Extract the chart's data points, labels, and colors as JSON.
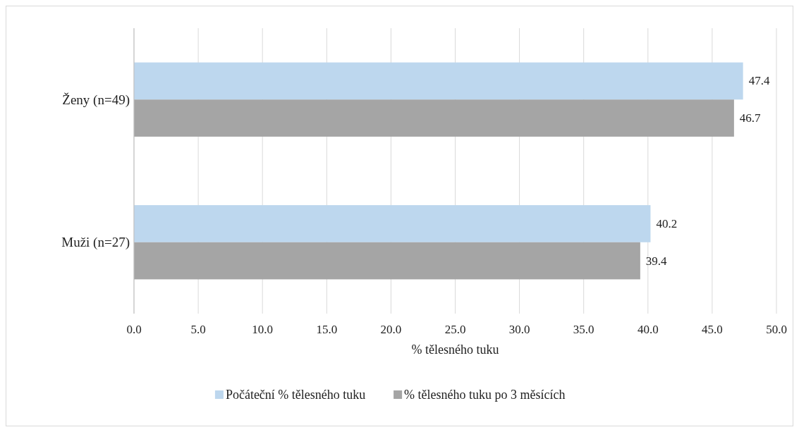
{
  "chart_data": {
    "type": "bar",
    "orientation": "horizontal",
    "categories": [
      "Ženy (n=49)",
      "Muži (n=27)"
    ],
    "series": [
      {
        "name": "Počáteční % tělesného tuku",
        "color": "#bdd7ee",
        "values": [
          47.4,
          40.2
        ]
      },
      {
        "name": "% tělesného tuku po 3 měsících",
        "color": "#a5a5a5",
        "values": [
          46.7,
          39.4
        ]
      }
    ],
    "xlabel": "% tělesného tuku",
    "xlim": [
      0,
      50
    ],
    "xticks": [
      {
        "value": 0,
        "label": "0.0"
      },
      {
        "value": 5,
        "label": "5.0"
      },
      {
        "value": 10,
        "label": "10.0"
      },
      {
        "value": 15,
        "label": "15.0"
      },
      {
        "value": 20,
        "label": "20.0"
      },
      {
        "value": 25,
        "label": "25.0"
      },
      {
        "value": 30,
        "label": "30.0"
      },
      {
        "value": 35,
        "label": "35.0"
      },
      {
        "value": 40,
        "label": "40.0"
      },
      {
        "value": 45,
        "label": "45.0"
      },
      {
        "value": 50,
        "label": "50.0"
      }
    ],
    "grid": "x",
    "legend": "bottom",
    "data_labels": true
  }
}
